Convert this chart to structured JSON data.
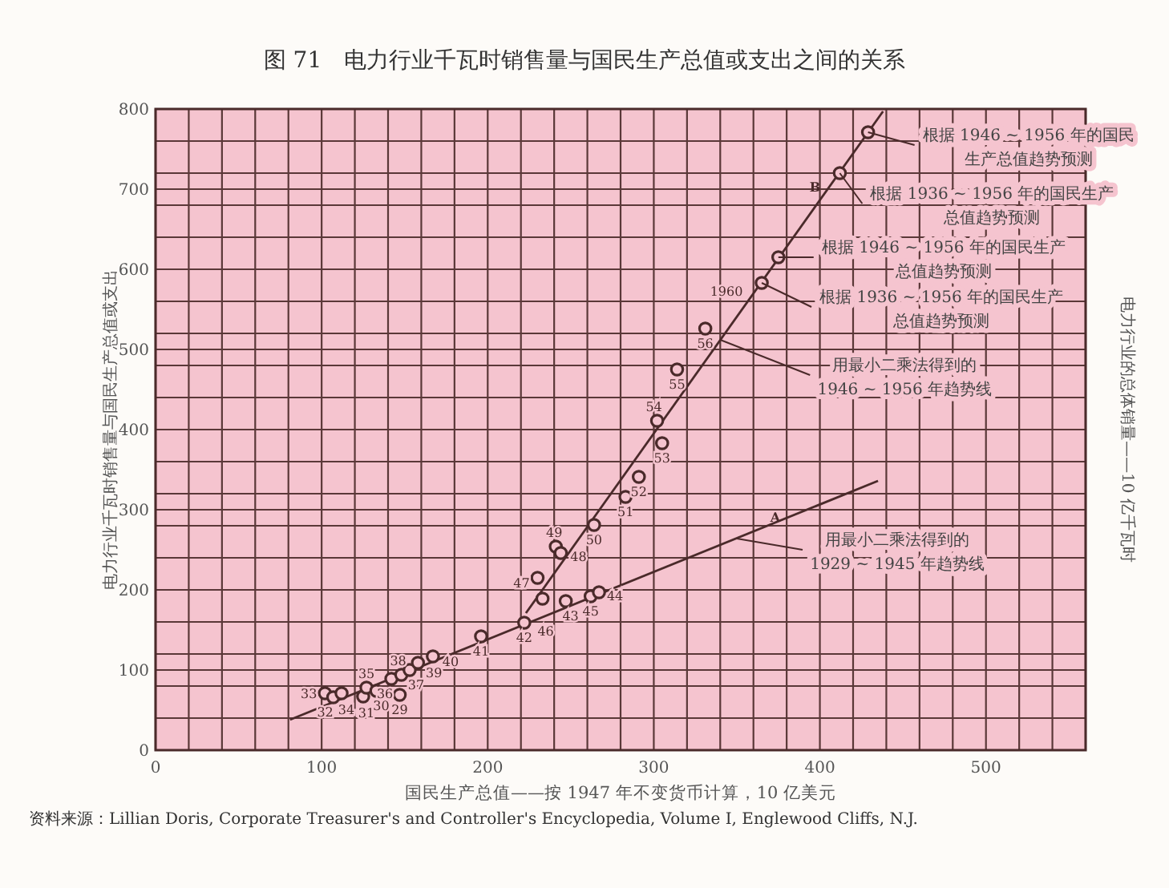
{
  "chart_data": {
    "type": "scatter",
    "title": "图 71　电力行业千瓦时销售量与国民生产总值或支出之间的关系",
    "xlabel": "国民生产总值——按 1947 年不变货币计算，10 亿美元",
    "ylabel": "电力行业千瓦时销售量与国民生产总值或支出",
    "y2label": "电力行业的总体销量——10 亿千瓦时",
    "xlim": [
      0,
      560
    ],
    "ylim": [
      0,
      800
    ],
    "xticks": [
      0,
      {
        "value": 20,
        "label": null
      },
      {
        "value": 40,
        "label": null
      },
      {
        "value": 60,
        "label": null
      },
      {
        "value": 80,
        "label": null
      },
      100,
      {
        "value": 120,
        "label": null
      },
      {
        "value": 140,
        "label": null
      },
      {
        "value": 160,
        "label": null
      },
      {
        "value": 180,
        "label": null
      },
      200,
      {
        "value": 220,
        "label": null
      },
      {
        "value": 240,
        "label": null
      },
      {
        "value": 260,
        "label": null
      },
      {
        "value": 280,
        "label": null
      },
      300,
      {
        "value": 320,
        "label": null
      },
      {
        "value": 340,
        "label": null
      },
      {
        "value": 360,
        "label": null
      },
      {
        "value": 380,
        "label": null
      },
      400,
      {
        "value": 420,
        "label": null
      },
      {
        "value": 440,
        "label": null
      },
      {
        "value": 460,
        "label": null
      },
      {
        "value": 480,
        "label": null
      },
      500,
      {
        "value": 520,
        "label": null
      },
      {
        "value": 540,
        "label": null
      },
      {
        "value": 560,
        "label": null
      }
    ],
    "yticks": [
      0,
      {
        "value": 40,
        "label": null
      },
      {
        "value": 80,
        "label": null
      },
      100,
      {
        "value": 120,
        "label": null
      },
      {
        "value": 160,
        "label": null
      },
      200,
      {
        "value": 240,
        "label": null
      },
      {
        "value": 280,
        "label": null
      },
      300,
      {
        "value": 320,
        "label": null
      },
      {
        "value": 360,
        "label": null
      },
      400,
      {
        "value": 440,
        "label": null
      },
      {
        "value": 480,
        "label": null
      },
      500,
      {
        "value": 520,
        "label": null
      },
      {
        "value": 560,
        "label": null
      },
      600,
      {
        "value": 640,
        "label": null
      },
      {
        "value": 680,
        "label": null
      },
      700,
      {
        "value": 720,
        "label": null
      },
      {
        "value": 760,
        "label": null
      },
      800
    ],
    "grid": true,
    "series": [
      {
        "type": "scatter",
        "marker": "circle",
        "color": "#4a2a2a",
        "x": [
          102,
          107,
          112,
          125,
          127,
          133,
          147,
          142,
          148,
          153,
          158,
          167,
          196,
          222,
          233,
          230,
          247,
          262,
          267,
          241,
          244,
          264,
          283,
          291,
          305,
          302,
          314,
          331,
          365,
          375,
          412,
          429
        ],
        "values": [
          71,
          66,
          71,
          67,
          78,
          74,
          69,
          89,
          94,
          100,
          109,
          117,
          142,
          159,
          189,
          215,
          186,
          192,
          197,
          254,
          246,
          281,
          316,
          341,
          383,
          411,
          475,
          526,
          583,
          615,
          720,
          771
        ]
      },
      {
        "type": "line",
        "marker": "none",
        "name": "B",
        "color": "#4a2a2a",
        "x": [
          223,
          438
        ],
        "values": [
          171,
          797
        ]
      },
      {
        "type": "line",
        "marker": "none",
        "name": "A",
        "color": "#4a2a2a",
        "x": [
          81,
          435
        ],
        "values": [
          38,
          336
        ]
      }
    ],
    "annotations": [
      {
        "text": "33",
        "x": 102,
        "y": 71
      },
      {
        "text": "32",
        "x": 107,
        "y": 66
      },
      {
        "text": "34",
        "x": 112,
        "y": 71
      },
      {
        "text": "31",
        "x": 125,
        "y": 67
      },
      {
        "text": "35",
        "x": 127,
        "y": 78
      },
      {
        "text": "30",
        "x": 133,
        "y": 74
      },
      {
        "text": "29",
        "x": 147,
        "y": 69
      },
      {
        "text": "36",
        "x": 142,
        "y": 89
      },
      {
        "text": "38",
        "x": 148,
        "y": 94
      },
      {
        "text": "37",
        "x": 153,
        "y": 100
      },
      {
        "text": "39",
        "x": 158,
        "y": 109
      },
      {
        "text": "40",
        "x": 167,
        "y": 117
      },
      {
        "text": "41",
        "x": 196,
        "y": 142
      },
      {
        "text": "42",
        "x": 222,
        "y": 159
      },
      {
        "text": "46",
        "x": 233,
        "y": 189
      },
      {
        "text": "47",
        "x": 230,
        "y": 215
      },
      {
        "text": "43",
        "x": 247,
        "y": 186
      },
      {
        "text": "45",
        "x": 262,
        "y": 192
      },
      {
        "text": "44",
        "x": 267,
        "y": 197
      },
      {
        "text": "49",
        "x": 241,
        "y": 254
      },
      {
        "text": "48",
        "x": 244,
        "y": 246
      },
      {
        "text": "50",
        "x": 264,
        "y": 281
      },
      {
        "text": "51",
        "x": 283,
        "y": 316
      },
      {
        "text": "52",
        "x": 291,
        "y": 341
      },
      {
        "text": "53",
        "x": 305,
        "y": 383
      },
      {
        "text": "54",
        "x": 302,
        "y": 411
      },
      {
        "text": "55",
        "x": 314,
        "y": 475
      },
      {
        "text": "56",
        "x": 331,
        "y": 526
      },
      {
        "text": "1960",
        "x": 365,
        "y": 583
      },
      {
        "text": "根据 1946 ~ 1956 年的国民生产总值趋势预测",
        "x": 429,
        "y": 771
      },
      {
        "text": "根据 1936 ~ 1956 年的国民生产总值趋势预测",
        "x": 412,
        "y": 720
      },
      {
        "text": "根据 1946 ~ 1956 年的国民生产总值趋势预测",
        "x": 375,
        "y": 615
      },
      {
        "text": "根据 1936 ~ 1956 年的国民生产总值趋势预测",
        "x": 365,
        "y": 583
      },
      {
        "text": "用最小二乘法得到的1946 ~ 1956 年趋势线",
        "x": 340,
        "y": 512
      },
      {
        "text": "用最小二乘法得到的1929 ~ 1945 年趋势线",
        "x": 350,
        "y": 264
      },
      "资料来源：Lillian Doris, Corporate Treasurer's and Controller's Encyclopedia, Volume I, Englewood Cliffs, N.J."
    ]
  }
}
